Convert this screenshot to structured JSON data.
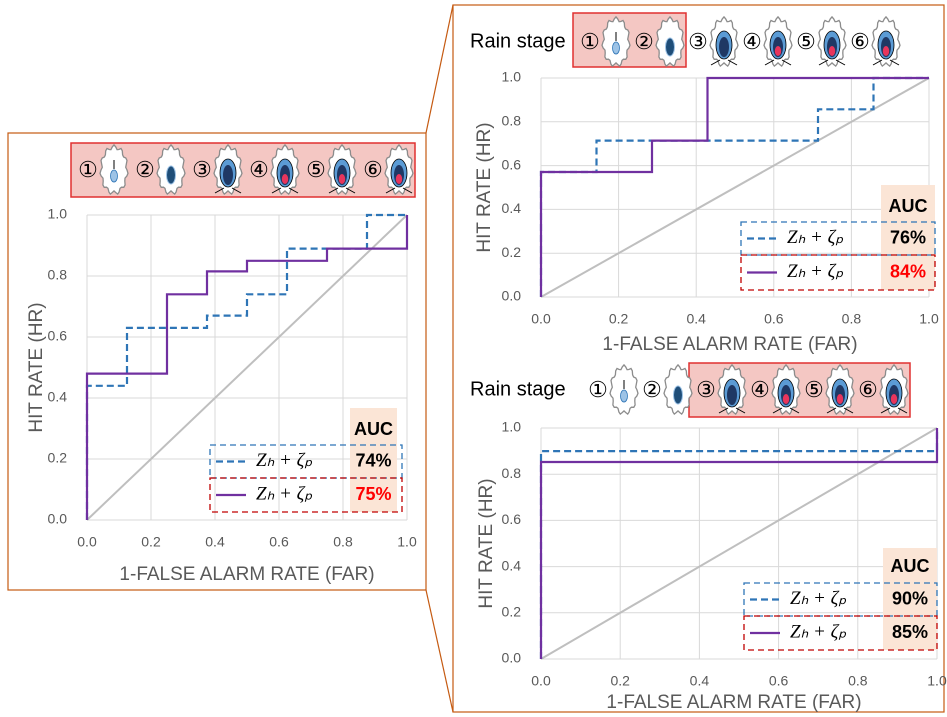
{
  "chart_data": [
    {
      "type": "line",
      "stages": [
        {
          "label": "①",
          "highlight": true
        },
        {
          "label": "②",
          "highlight": true
        },
        {
          "label": "③",
          "highlight": true
        },
        {
          "label": "④",
          "highlight": true
        },
        {
          "label": "⑤",
          "highlight": true
        },
        {
          "label": "⑥",
          "highlight": true
        }
      ],
      "xlabel": "1-FALSE ALARM RATE (FAR)",
      "ylabel": "HIT RATE (HR)",
      "xlim": [
        0,
        1
      ],
      "ylim": [
        0,
        1
      ],
      "xticks": [
        {
          "value": 0,
          "label": "0.0"
        },
        {
          "value": 0.2,
          "label": "0.2"
        },
        {
          "value": 0.4,
          "label": "0.4"
        },
        {
          "value": 0.6,
          "label": "0.6"
        },
        {
          "value": 0.8,
          "label": "0.8"
        },
        {
          "value": 1,
          "label": "1.0"
        }
      ],
      "yticks": [
        {
          "value": 0,
          "label": "0.0"
        },
        {
          "value": 0.2,
          "label": "0.2"
        },
        {
          "value": 0.4,
          "label": "0.4"
        },
        {
          "value": 0.6,
          "label": "0.6"
        },
        {
          "value": 0.8,
          "label": "0.8"
        },
        {
          "value": 1,
          "label": "1.0"
        }
      ],
      "grid": true,
      "reference_color": "#bfbfbf",
      "legend_title": "AUC",
      "series": [
        {
          "name": "Zₕ + ζₚ",
          "color": "#2e75b6",
          "dash": true,
          "box_color": "#2e75b6",
          "x": [
            0,
            0,
            0.125,
            0.125,
            0.375,
            0.375,
            0.5,
            0.5,
            0.625,
            0.625,
            0.875,
            0.875,
            1
          ],
          "values": [
            0,
            0.44,
            0.44,
            0.63,
            0.63,
            0.67,
            0.67,
            0.74,
            0.74,
            0.89,
            0.89,
            1,
            1
          ],
          "auc": {
            "value": 74,
            "label": "74%"
          },
          "auc_color": "#000000"
        },
        {
          "name": "Zₕ + ζₚ",
          "color": "#7030a0",
          "dash": false,
          "box_color": "#c00000",
          "x": [
            0,
            0,
            0.25,
            0.25,
            0.375,
            0.375,
            0.5,
            0.5,
            0.75,
            0.75,
            1,
            1
          ],
          "values": [
            0,
            0.48,
            0.48,
            0.74,
            0.74,
            0.815,
            0.815,
            0.85,
            0.85,
            0.89,
            0.89,
            1
          ],
          "auc": {
            "value": 75,
            "label": "75%"
          },
          "auc_color": "#ff0000"
        }
      ]
    },
    {
      "type": "line",
      "header": "Rain stage",
      "stages": [
        {
          "label": "①",
          "highlight": true
        },
        {
          "label": "②",
          "highlight": true
        },
        {
          "label": "③",
          "highlight": false
        },
        {
          "label": "④",
          "highlight": false
        },
        {
          "label": "⑤",
          "highlight": false
        },
        {
          "label": "⑥",
          "highlight": false
        }
      ],
      "xlabel": "1-FALSE ALARM RATE (FAR)",
      "ylabel": "HIT RATE (HR)",
      "xlim": [
        0,
        1
      ],
      "ylim": [
        0,
        1
      ],
      "xticks": [
        {
          "value": 0,
          "label": "0.0"
        },
        {
          "value": 0.2,
          "label": "0.2"
        },
        {
          "value": 0.4,
          "label": "0.4"
        },
        {
          "value": 0.6,
          "label": "0.6"
        },
        {
          "value": 0.8,
          "label": "0.8"
        },
        {
          "value": 1,
          "label": "1.0"
        }
      ],
      "yticks": [
        {
          "value": 0,
          "label": "0.0"
        },
        {
          "value": 0.2,
          "label": "0.2"
        },
        {
          "value": 0.4,
          "label": "0.4"
        },
        {
          "value": 0.6,
          "label": "0.6"
        },
        {
          "value": 0.8,
          "label": "0.8"
        },
        {
          "value": 1,
          "label": "1.0"
        }
      ],
      "grid": true,
      "reference_color": "#bfbfbf",
      "legend_title": "AUC",
      "series": [
        {
          "name": "Zₕ + ζₚ",
          "color": "#2e75b6",
          "dash": true,
          "box_color": "#2e75b6",
          "x": [
            0,
            0,
            0.143,
            0.143,
            0.714,
            0.714,
            0.857,
            0.857,
            1
          ],
          "values": [
            0,
            0.571,
            0.571,
            0.714,
            0.714,
            0.857,
            0.857,
            1,
            1
          ],
          "auc": {
            "value": 76,
            "label": "76%"
          },
          "auc_color": "#000000"
        },
        {
          "name": "Zₕ + ζₚ",
          "color": "#7030a0",
          "dash": false,
          "box_color": "#c00000",
          "x": [
            0,
            0,
            0.286,
            0.286,
            0.429,
            0.429,
            1
          ],
          "values": [
            0,
            0.571,
            0.571,
            0.714,
            0.714,
            1,
            1
          ],
          "auc": {
            "value": 84,
            "label": "84%"
          },
          "auc_color": "#ff0000"
        }
      ]
    },
    {
      "type": "line",
      "header": "Rain stage",
      "stages": [
        {
          "label": "①",
          "highlight": false
        },
        {
          "label": "②",
          "highlight": false
        },
        {
          "label": "③",
          "highlight": true
        },
        {
          "label": "④",
          "highlight": true
        },
        {
          "label": "⑤",
          "highlight": true
        },
        {
          "label": "⑥",
          "highlight": true
        }
      ],
      "xlabel": "1-FALSE ALARM RATE (FAR)",
      "ylabel": "HIT RATE (HR)",
      "xlim": [
        0,
        1
      ],
      "ylim": [
        0,
        1
      ],
      "xticks": [
        {
          "value": 0,
          "label": "0.0"
        },
        {
          "value": 0.2,
          "label": "0.2"
        },
        {
          "value": 0.4,
          "label": "0.4"
        },
        {
          "value": 0.6,
          "label": "0.6"
        },
        {
          "value": 0.8,
          "label": "0.8"
        },
        {
          "value": 1,
          "label": "1.0"
        }
      ],
      "yticks": [
        {
          "value": 0,
          "label": "0.0"
        },
        {
          "value": 0.2,
          "label": "0.2"
        },
        {
          "value": 0.4,
          "label": "0.4"
        },
        {
          "value": 0.6,
          "label": "0.6"
        },
        {
          "value": 0.8,
          "label": "0.8"
        },
        {
          "value": 1,
          "label": "1.0"
        }
      ],
      "grid": true,
      "reference_color": "#bfbfbf",
      "legend_title": "AUC",
      "series": [
        {
          "name": "Zₕ + ζₚ",
          "color": "#2e75b6",
          "dash": true,
          "box_color": "#2e75b6",
          "x": [
            0,
            0,
            1,
            1
          ],
          "values": [
            0,
            0.9,
            0.9,
            1
          ],
          "auc": {
            "value": 90,
            "label": "90%"
          },
          "auc_color": "#000000"
        },
        {
          "name": "Zₕ + ζₚ",
          "color": "#7030a0",
          "dash": false,
          "box_color": "#c00000",
          "x": [
            0,
            0,
            1,
            1
          ],
          "values": [
            0,
            0.853,
            0.853,
            1
          ],
          "auc": {
            "value": 85,
            "label": "85%"
          },
          "auc_color": "#000000"
        }
      ]
    }
  ]
}
